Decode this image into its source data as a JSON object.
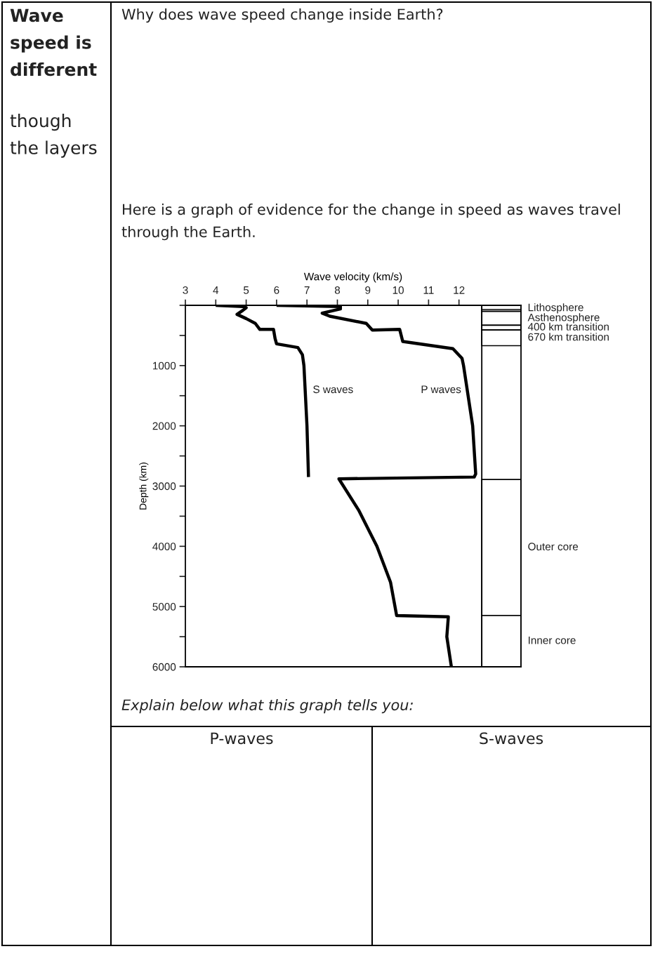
{
  "chart_data": {
    "type": "line",
    "xlabel": "Wave velocity (km/s)",
    "ylabel": "Depth (km)",
    "xlim": [
      3,
      14.04
    ],
    "xticks": [
      3,
      4,
      5,
      6,
      7,
      8,
      9,
      10,
      11,
      12
    ],
    "ylim": [
      6000,
      0
    ],
    "yticks": [
      {
        "value": 0,
        "label": null
      },
      {
        "value": 500,
        "label": null
      },
      1000,
      {
        "value": 1500,
        "label": null
      },
      2000,
      {
        "value": 2500,
        "label": null
      },
      3000,
      {
        "value": 3500,
        "label": null
      },
      4000,
      {
        "value": 4500,
        "label": null
      },
      5000,
      {
        "value": 5500,
        "label": null
      },
      6000
    ],
    "grid": false,
    "legend": false,
    "marker": "none",
    "line_style": "solid",
    "series": [
      {
        "name": "S waves",
        "color": "#000000",
        "x": [
          4.0,
          4.9,
          5.0,
          4.9,
          4.7,
          5.0,
          5.3,
          5.45,
          5.9,
          5.95,
          6.0,
          6.7,
          6.85,
          6.9,
          7.0,
          7.05
        ],
        "values": [
          0,
          20,
          40,
          80,
          150,
          220,
          300,
          400,
          400,
          550,
          640,
          700,
          820,
          1000,
          2000,
          2850
        ]
      },
      {
        "name": "P waves",
        "color": "#000000",
        "x": [
          6.0,
          8.1,
          8.1,
          7.5,
          7.75,
          8.95,
          9.15,
          10.05,
          10.15,
          11.8,
          12.1,
          12.15,
          12.45,
          12.55,
          12.5,
          8.05,
          8.7,
          9.3,
          9.75,
          9.95,
          11.65,
          11.6,
          11.75
        ],
        "values": [
          0,
          20,
          60,
          130,
          180,
          300,
          410,
          400,
          600,
          720,
          880,
          1000,
          2000,
          2800,
          2850,
          2880,
          3400,
          4000,
          4600,
          5150,
          5170,
          5500,
          6000
        ]
      }
    ],
    "bands": [
      {
        "axis": "y",
        "from": 0,
        "to": 100,
        "label": "Lithosphere",
        "color": "#ffffff"
      },
      {
        "axis": "y",
        "from": 100,
        "to": 330,
        "label": "Asthenosphere",
        "color": "#ffffff"
      },
      {
        "axis": "y",
        "from": 330,
        "to": 410,
        "label": "400 km transition",
        "color": "#ffffff"
      },
      {
        "axis": "y",
        "from": 410,
        "to": 670,
        "label": "670 km transition",
        "color": "#ffffff"
      },
      {
        "axis": "y",
        "from": 2890,
        "to": 5150,
        "label": "Outer core",
        "color": "#ffffff"
      },
      {
        "axis": "y",
        "from": 5150,
        "to": 6000,
        "label": "Inner core",
        "color": "#ffffff"
      }
    ],
    "ref_lines": [
      {
        "axis": "x",
        "value": 12.75,
        "label": null
      },
      {
        "axis": "y",
        "value": 70,
        "label": null
      }
    ],
    "annotations": [
      "Wave\nspeed is\ndifferent",
      "though\nthe layers",
      "Why does wave speed change inside Earth?",
      "Here is a graph of evidence for the change in speed as waves travel\nthrough the Earth.",
      "Explain below what this graph tells you:",
      "P-waves",
      "S-waves"
    ]
  }
}
